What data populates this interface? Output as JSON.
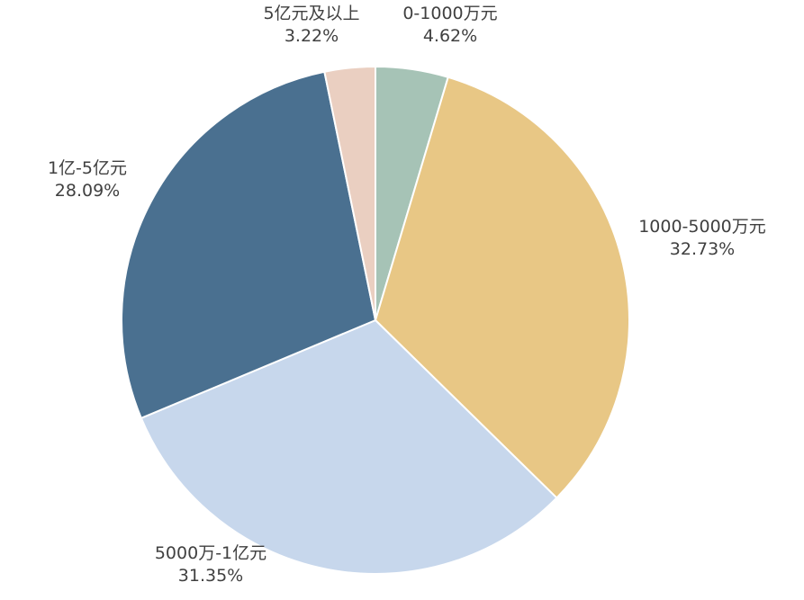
{
  "chart_data": {
    "type": "pie",
    "start_angle_deg": 0,
    "direction": "clockwise",
    "slices": [
      {
        "category": "0-1000万元",
        "value": 4.62,
        "label": "4.62%",
        "color": "#a6c3b6"
      },
      {
        "category": "1000-5000万元",
        "value": 32.73,
        "label": "32.73%",
        "color": "#e8c785"
      },
      {
        "category": "5000万-1亿元",
        "value": 31.35,
        "label": "31.35%",
        "color": "#c7d7ec"
      },
      {
        "category": "1亿-5亿元",
        "value": 28.09,
        "label": "28.09%",
        "color": "#4a7090"
      },
      {
        "category": "5亿元及以上",
        "value": 3.22,
        "label": "3.22%",
        "color": "#eacfc1"
      }
    ],
    "legend": "none"
  }
}
